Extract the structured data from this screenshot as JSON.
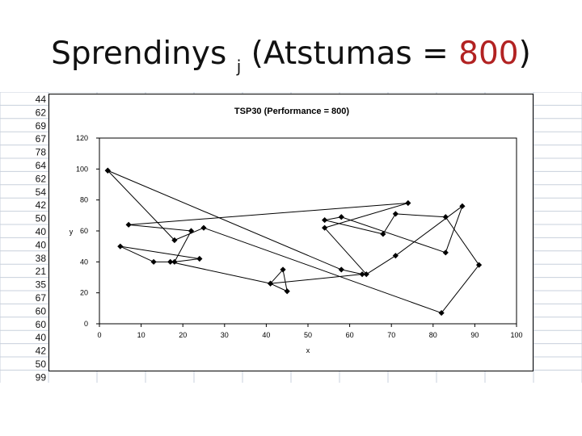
{
  "slide": {
    "title_main": "Sprendinys ",
    "title_sub": "j",
    "title_open": " (Atstumas = ",
    "title_value": "800",
    "title_close": ")"
  },
  "sheet": {
    "column_values": [
      "44",
      "62",
      "69",
      "67",
      "78",
      "64",
      "62",
      "54",
      "42",
      "50",
      "40",
      "40",
      "38",
      "21",
      "35",
      "67",
      "60",
      "60",
      "40",
      "42",
      "50",
      "99"
    ]
  },
  "chart_data": {
    "type": "line",
    "title": "TSP30 (Performance  = 800)",
    "xlabel": "x",
    "ylabel": "y",
    "xlim": [
      0,
      100
    ],
    "ylim": [
      0,
      120
    ],
    "xticks": [
      "0",
      "10",
      "20",
      "30",
      "40",
      "50",
      "60",
      "70",
      "80",
      "90",
      "100"
    ],
    "yticks": [
      "0",
      "20",
      "40",
      "60",
      "80",
      "100",
      "120"
    ],
    "grid": false,
    "series": [
      {
        "name": "",
        "x": [
          2,
          18,
          25,
          82,
          91,
          83,
          71,
          68,
          54,
          58,
          83,
          87,
          71,
          64,
          54,
          74,
          7,
          22,
          18,
          24,
          5,
          13,
          17,
          41,
          45,
          44,
          41,
          63,
          58,
          2
        ],
        "y": [
          99,
          54,
          62,
          7,
          38,
          69,
          71,
          58,
          67,
          69,
          46,
          76,
          44,
          32,
          62,
          78,
          64,
          60,
          40,
          42,
          50,
          40,
          40,
          26,
          21,
          35,
          26,
          32,
          35,
          99
        ]
      }
    ]
  }
}
